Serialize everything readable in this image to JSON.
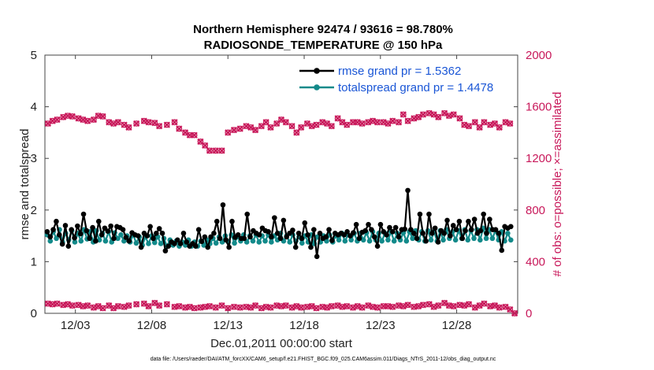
{
  "chart_data": {
    "type": "line",
    "title_line1": "Northern Hemisphere 92474 / 93616 = 98.780%",
    "title_line2": "RADIOSONDE_TEMPERATURE @ 150 hPa",
    "xlabel": "Dec.01,2011 00:00:00 start",
    "ylabel_left": "rmse and totalspread",
    "ylabel_right": "# of obs: o=possible; ×=assimilated",
    "footer": "data file: /Users/raeder/DAI/ATM_forcXX/CAM6_setup/f.e21.FHIST_BGC.f09_025.CAM6assim.011/Diags_NTrS_2011-12/obs_diag_output.nc",
    "x_tick_labels": [
      "12/03",
      "12/08",
      "12/13",
      "12/18",
      "12/23",
      "12/28"
    ],
    "x_tick_days": [
      3,
      8,
      13,
      18,
      23,
      28
    ],
    "x_range_days": [
      1,
      32
    ],
    "y_left_ticks": [
      0,
      1,
      2,
      3,
      4,
      5
    ],
    "y_left_range": [
      0,
      5
    ],
    "y_right_ticks": [
      0,
      400,
      800,
      1200,
      1600,
      2000
    ],
    "y_right_range": [
      0,
      2000
    ],
    "legend": {
      "rmse": "rmse grand pr = 1.5362",
      "spread": "totalspread grand pr = 1.4478"
    },
    "colors": {
      "rmse": "#000000",
      "spread": "#138a8a",
      "obs": "#c8185a",
      "legend_text": "#1a56d6"
    },
    "series_rmse": [
      1.58,
      1.48,
      1.62,
      1.78,
      1.52,
      1.34,
      1.7,
      1.3,
      1.62,
      1.46,
      1.69,
      1.54,
      1.92,
      1.6,
      1.45,
      1.66,
      1.4,
      1.78,
      1.52,
      1.65,
      1.59,
      1.69,
      1.45,
      1.68,
      1.66,
      1.62,
      1.47,
      1.4,
      1.56,
      1.52,
      1.5,
      1.28,
      1.55,
      1.5,
      1.68,
      1.45,
      1.55,
      1.64,
      1.55,
      1.21,
      1.3,
      1.38,
      1.35,
      1.42,
      1.35,
      1.55,
      1.38,
      1.3,
      1.35,
      1.3,
      1.62,
      1.39,
      1.48,
      1.28,
      1.48,
      1.55,
      1.78,
      1.45,
      2.1,
      1.42,
      1.28,
      1.78,
      1.47,
      1.52,
      1.45,
      1.45,
      1.92,
      1.48,
      1.6,
      1.55,
      1.52,
      1.65,
      1.6,
      1.58,
      1.48,
      1.85,
      1.55,
      1.45,
      1.8,
      1.48,
      1.55,
      1.61,
      1.28,
      1.55,
      1.45,
      1.75,
      1.52,
      1.28,
      1.62,
      1.1,
      1.55,
      1.45,
      1.48,
      1.62,
      1.41,
      1.55,
      1.52,
      1.55,
      1.52,
      1.58,
      1.5,
      1.56,
      1.72,
      1.45,
      1.57,
      1.6,
      1.72,
      1.62,
      1.48,
      1.3,
      1.72,
      1.58,
      1.52,
      1.66,
      1.58,
      1.66,
      1.48,
      1.62,
      1.63,
      2.38,
      1.62,
      1.55,
      1.45,
      1.92,
      1.55,
      1.4,
      1.92,
      1.55,
      1.65,
      1.38,
      1.6,
      1.55,
      1.8,
      1.5,
      1.7,
      1.62,
      1.78,
      1.45,
      1.6,
      1.78,
      1.62,
      1.82,
      1.55,
      1.6,
      1.92,
      1.55,
      1.82,
      1.62,
      1.62,
      1.55,
      1.22,
      1.68,
      1.65,
      1.68
    ],
    "series_spread": [
      1.52,
      1.4,
      1.58,
      1.45,
      1.62,
      1.38,
      1.55,
      1.42,
      1.6,
      1.38,
      1.55,
      1.4,
      1.62,
      1.44,
      1.58,
      1.38,
      1.6,
      1.42,
      1.55,
      1.4,
      1.58,
      1.38,
      1.56,
      1.45,
      1.52,
      1.4,
      1.5,
      1.38,
      1.52,
      1.36,
      1.48,
      1.32,
      1.48,
      1.35,
      1.5,
      1.37,
      1.48,
      1.35,
      1.45,
      1.3,
      1.42,
      1.32,
      1.4,
      1.3,
      1.38,
      1.32,
      1.42,
      1.3,
      1.38,
      1.3,
      1.4,
      1.32,
      1.42,
      1.35,
      1.45,
      1.36,
      1.48,
      1.38,
      1.5,
      1.38,
      1.52,
      1.36,
      1.48,
      1.4,
      1.52,
      1.38,
      1.5,
      1.4,
      1.52,
      1.38,
      1.5,
      1.4,
      1.52,
      1.38,
      1.5,
      1.42,
      1.55,
      1.4,
      1.5,
      1.38,
      1.52,
      1.4,
      1.48,
      1.36,
      1.5,
      1.38,
      1.52,
      1.35,
      1.48,
      1.38,
      1.5,
      1.4,
      1.52,
      1.38,
      1.5,
      1.42,
      1.55,
      1.4,
      1.52,
      1.42,
      1.55,
      1.4,
      1.55,
      1.42,
      1.56,
      1.4,
      1.58,
      1.42,
      1.55,
      1.4,
      1.55,
      1.42,
      1.58,
      1.4,
      1.55,
      1.42,
      1.56,
      1.4,
      1.58,
      1.45,
      1.6,
      1.42,
      1.58,
      1.4,
      1.6,
      1.42,
      1.58,
      1.4,
      1.6,
      1.42,
      1.62,
      1.45,
      1.58,
      1.42,
      1.6,
      1.45,
      1.62,
      1.42,
      1.6,
      1.45,
      1.62,
      1.42,
      1.65,
      1.45,
      1.62,
      1.45,
      1.6,
      1.42,
      1.58,
      1.4,
      1.55,
      1.42
    ],
    "obs_possible_pairs": [
      [
        1.2,
        1470
      ],
      [
        1.5,
        1490
      ],
      [
        1.8,
        1500
      ],
      [
        2.2,
        1520
      ],
      [
        2.5,
        1530
      ],
      [
        2.8,
        1525
      ],
      [
        3.2,
        1510
      ],
      [
        3.5,
        1500
      ],
      [
        3.8,
        1490
      ],
      [
        4.2,
        1500
      ],
      [
        4.5,
        1530
      ],
      [
        4.8,
        1525
      ],
      [
        5.2,
        1480
      ],
      [
        5.5,
        1470
      ],
      [
        5.8,
        1480
      ],
      [
        6.2,
        1460
      ],
      [
        6.5,
        1440
      ],
      [
        7.0,
        1470
      ],
      [
        7.5,
        1490
      ],
      [
        7.8,
        1480
      ],
      [
        8.2,
        1475
      ],
      [
        8.5,
        1450
      ],
      [
        9.0,
        1460
      ],
      [
        9.5,
        1480
      ],
      [
        9.8,
        1430
      ],
      [
        10.2,
        1400
      ],
      [
        10.5,
        1380
      ],
      [
        10.8,
        1380
      ],
      [
        11.2,
        1330
      ],
      [
        11.5,
        1300
      ],
      [
        11.8,
        1260
      ],
      [
        12.2,
        1260
      ],
      [
        12.6,
        1260
      ],
      [
        13.0,
        1400
      ],
      [
        13.4,
        1420
      ],
      [
        13.8,
        1430
      ],
      [
        14.2,
        1450
      ],
      [
        14.5,
        1440
      ],
      [
        14.8,
        1420
      ],
      [
        15.2,
        1450
      ],
      [
        15.5,
        1480
      ],
      [
        15.8,
        1440
      ],
      [
        16.2,
        1470
      ],
      [
        16.5,
        1500
      ],
      [
        16.8,
        1480
      ],
      [
        17.2,
        1450
      ],
      [
        17.5,
        1400
      ],
      [
        17.8,
        1440
      ],
      [
        18.2,
        1470
      ],
      [
        18.5,
        1450
      ],
      [
        18.8,
        1460
      ],
      [
        19.2,
        1480
      ],
      [
        19.5,
        1470
      ],
      [
        19.8,
        1450
      ],
      [
        20.2,
        1510
      ],
      [
        20.5,
        1480
      ],
      [
        20.8,
        1460
      ],
      [
        21.2,
        1480
      ],
      [
        21.5,
        1480
      ],
      [
        21.8,
        1470
      ],
      [
        22.2,
        1480
      ],
      [
        22.5,
        1490
      ],
      [
        22.8,
        1480
      ],
      [
        23.2,
        1480
      ],
      [
        23.5,
        1470
      ],
      [
        23.8,
        1490
      ],
      [
        24.2,
        1480
      ],
      [
        24.5,
        1540
      ],
      [
        24.8,
        1490
      ],
      [
        25.2,
        1510
      ],
      [
        25.5,
        1520
      ],
      [
        25.8,
        1540
      ],
      [
        26.2,
        1550
      ],
      [
        26.5,
        1540
      ],
      [
        26.8,
        1520
      ],
      [
        27.2,
        1550
      ],
      [
        27.5,
        1530
      ],
      [
        27.8,
        1540
      ],
      [
        28.2,
        1510
      ],
      [
        28.5,
        1460
      ],
      [
        28.8,
        1450
      ],
      [
        29.2,
        1480
      ],
      [
        29.5,
        1440
      ],
      [
        29.8,
        1480
      ],
      [
        30.2,
        1460
      ],
      [
        30.5,
        1470
      ],
      [
        30.8,
        1440
      ],
      [
        31.2,
        1480
      ],
      [
        31.5,
        1470
      ]
    ],
    "obs_low_pairs": [
      [
        1.2,
        75
      ],
      [
        1.5,
        70
      ],
      [
        1.8,
        75
      ],
      [
        2.2,
        65
      ],
      [
        2.5,
        70
      ],
      [
        2.8,
        60
      ],
      [
        3.2,
        65
      ],
      [
        3.5,
        55
      ],
      [
        3.8,
        60
      ],
      [
        4.2,
        45
      ],
      [
        4.5,
        55
      ],
      [
        4.8,
        40
      ],
      [
        5.2,
        60
      ],
      [
        5.5,
        40
      ],
      [
        5.8,
        55
      ],
      [
        6.2,
        50
      ],
      [
        6.5,
        60
      ],
      [
        7.0,
        70
      ],
      [
        7.5,
        75
      ],
      [
        7.8,
        55
      ],
      [
        8.2,
        80
      ],
      [
        8.5,
        60
      ],
      [
        9.0,
        70
      ],
      [
        9.5,
        50
      ],
      [
        9.8,
        55
      ],
      [
        10.2,
        45
      ],
      [
        10.5,
        50
      ],
      [
        10.8,
        40
      ],
      [
        11.2,
        45
      ],
      [
        11.5,
        50
      ],
      [
        11.8,
        55
      ],
      [
        12.2,
        45
      ],
      [
        12.6,
        60
      ],
      [
        13.0,
        40
      ],
      [
        13.4,
        50
      ],
      [
        13.8,
        45
      ],
      [
        14.2,
        50
      ],
      [
        14.5,
        45
      ],
      [
        14.8,
        60
      ],
      [
        15.2,
        40
      ],
      [
        15.5,
        50
      ],
      [
        15.8,
        45
      ],
      [
        16.2,
        60
      ],
      [
        16.5,
        55
      ],
      [
        16.8,
        60
      ],
      [
        17.2,
        45
      ],
      [
        17.5,
        55
      ],
      [
        17.8,
        45
      ],
      [
        18.2,
        50
      ],
      [
        18.5,
        55
      ],
      [
        18.8,
        40
      ],
      [
        19.2,
        50
      ],
      [
        19.5,
        45
      ],
      [
        19.8,
        55
      ],
      [
        20.2,
        60
      ],
      [
        20.5,
        50
      ],
      [
        20.8,
        55
      ],
      [
        21.2,
        45
      ],
      [
        21.5,
        55
      ],
      [
        21.8,
        45
      ],
      [
        22.2,
        60
      ],
      [
        22.5,
        50
      ],
      [
        22.8,
        45
      ],
      [
        23.2,
        55
      ],
      [
        23.5,
        55
      ],
      [
        23.8,
        50
      ],
      [
        24.2,
        60
      ],
      [
        24.5,
        55
      ],
      [
        24.8,
        65
      ],
      [
        25.2,
        50
      ],
      [
        25.5,
        55
      ],
      [
        25.8,
        65
      ],
      [
        26.2,
        70
      ],
      [
        26.5,
        50
      ],
      [
        26.8,
        60
      ],
      [
        27.2,
        80
      ],
      [
        27.5,
        60
      ],
      [
        27.8,
        55
      ],
      [
        28.2,
        65
      ],
      [
        28.5,
        60
      ],
      [
        28.8,
        70
      ],
      [
        29.2,
        45
      ],
      [
        29.5,
        60
      ],
      [
        29.8,
        75
      ],
      [
        30.2,
        55
      ],
      [
        30.5,
        60
      ],
      [
        30.8,
        45
      ],
      [
        31.2,
        50
      ],
      [
        31.5,
        30
      ],
      [
        31.8,
        0
      ]
    ]
  }
}
